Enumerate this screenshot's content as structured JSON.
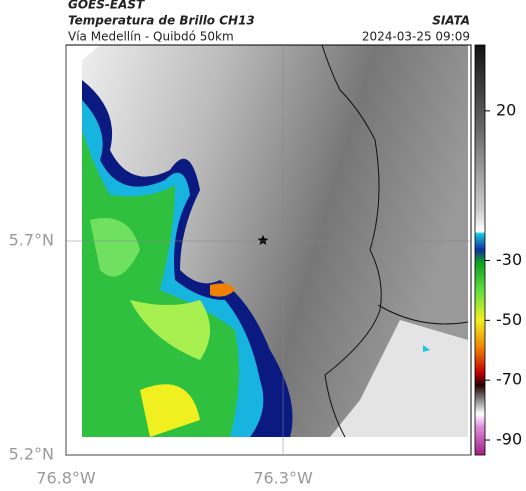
{
  "header": {
    "satellite": "GOES-EAST",
    "product": "Temperatura de Brillo CH13",
    "location": "Vía Medellín - Quibdó 50km",
    "agency": "SIATA",
    "datetime": "2024-03-25 09:09"
  },
  "map": {
    "xlim": [
      -76.8,
      -75.867
    ],
    "ylim": [
      5.2,
      6.158
    ],
    "xticks": [
      {
        "value": -76.8,
        "label": "76.8°W"
      },
      {
        "value": -76.3,
        "label": "76.3°W"
      }
    ],
    "yticks": [
      {
        "value": 5.2,
        "label": "5.2°N"
      },
      {
        "value": 5.7,
        "label": "5.7°N"
      }
    ]
  },
  "colorbar": {
    "range": [
      -95,
      42
    ],
    "ticks": [
      20,
      -30,
      -50,
      -70,
      -90
    ]
  }
}
